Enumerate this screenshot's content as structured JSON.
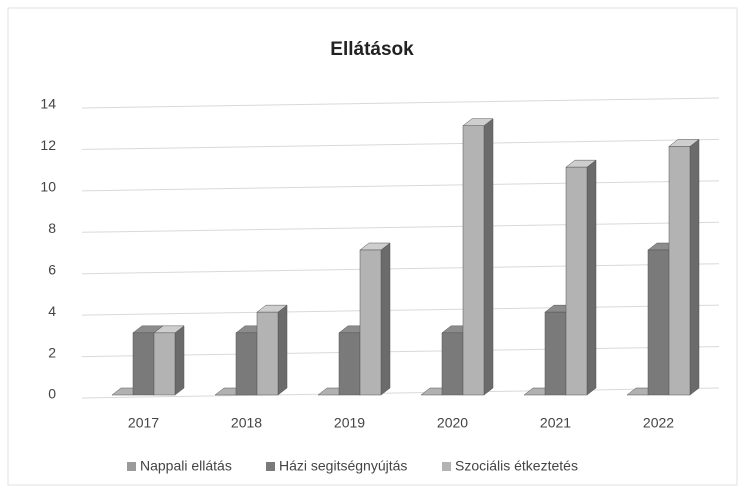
{
  "chart_data": {
    "type": "bar3d",
    "title": "Ellátások",
    "categories": [
      "2017",
      "2018",
      "2019",
      "2020",
      "2021",
      "2022"
    ],
    "series": [
      {
        "name": "Nappali ellátás",
        "color": "#9a9a9a",
        "values": [
          0,
          0,
          0,
          0,
          0,
          0
        ]
      },
      {
        "name": "Házi segitségnyújtás",
        "color": "#7a7a7a",
        "values": [
          3,
          3,
          3,
          3,
          4,
          7
        ]
      },
      {
        "name": "Szociális étkeztetés",
        "color": "#b3b3b3",
        "values": [
          3,
          4,
          7,
          13,
          11,
          12
        ]
      }
    ],
    "ylim": [
      0,
      14
    ],
    "yticks": [
      0,
      2,
      4,
      6,
      8,
      10,
      12,
      14
    ],
    "grid": true,
    "legend": "bottom"
  }
}
